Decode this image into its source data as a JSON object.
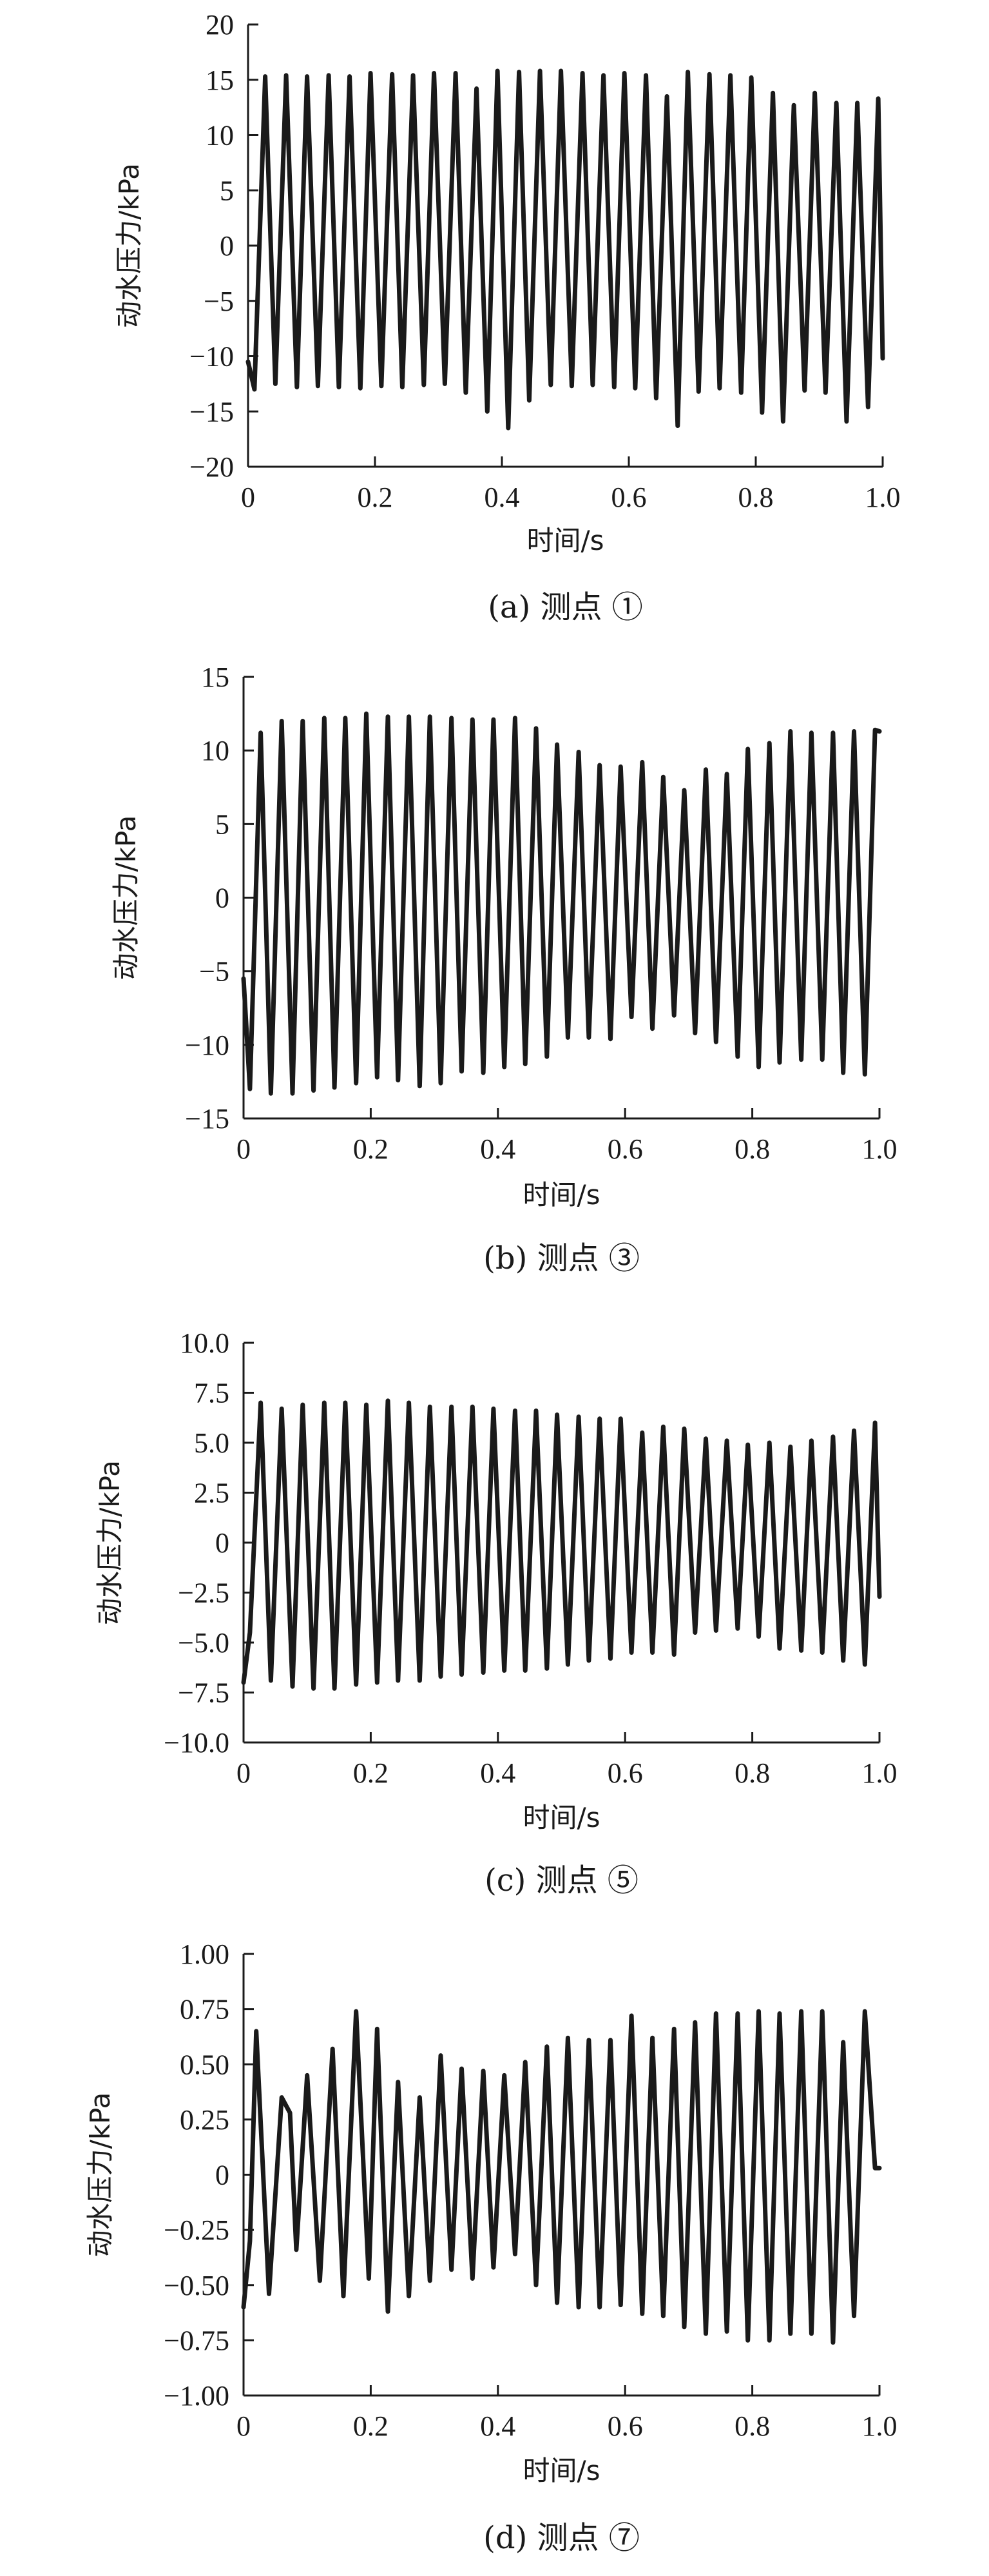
{
  "chart_data": [
    {
      "type": "line",
      "caption": "(a) 测点 ①",
      "xlabel": "时间/s",
      "ylabel": "动水压力/kPa",
      "xlim": [
        0,
        1.0
      ],
      "ylim": [
        -20,
        20
      ],
      "xticks": [
        "0",
        "0.2",
        "0.4",
        "0.6",
        "0.8",
        "1.0"
      ],
      "yticks": [
        "20",
        "15",
        "10",
        "5",
        "0",
        "−5",
        "−10",
        "−15",
        "−20"
      ],
      "x": [
        0,
        0.01,
        0.027,
        0.043,
        0.06,
        0.077,
        0.093,
        0.11,
        0.127,
        0.143,
        0.16,
        0.177,
        0.193,
        0.21,
        0.227,
        0.243,
        0.26,
        0.277,
        0.293,
        0.31,
        0.327,
        0.343,
        0.36,
        0.377,
        0.393,
        0.41,
        0.427,
        0.443,
        0.46,
        0.477,
        0.493,
        0.51,
        0.527,
        0.543,
        0.56,
        0.577,
        0.593,
        0.61,
        0.627,
        0.643,
        0.66,
        0.677,
        0.693,
        0.71,
        0.727,
        0.743,
        0.76,
        0.777,
        0.793,
        0.81,
        0.827,
        0.843,
        0.86,
        0.877,
        0.893,
        0.91,
        0.927,
        0.943,
        0.96,
        0.977,
        0.993,
        1.0
      ],
      "series": [
        {
          "values": [
            -10.5,
            -13,
            15.3,
            -12.5,
            15.4,
            -12.8,
            15.3,
            -12.7,
            15.4,
            -12.8,
            15.3,
            -12.9,
            15.6,
            -12.7,
            15.5,
            -12.8,
            15.4,
            -12.6,
            15.6,
            -12.5,
            15.6,
            -13.3,
            14.2,
            -15,
            15.8,
            -16.5,
            15.7,
            -14,
            15.8,
            -12.6,
            15.8,
            -12.7,
            15.6,
            -12.6,
            15.4,
            -12.8,
            15.6,
            -12.9,
            15.4,
            -13.8,
            13.5,
            -16.3,
            15.7,
            -13.2,
            15.5,
            -12.9,
            15.4,
            -13.3,
            15.2,
            -15.1,
            13.8,
            -15.9,
            12.7,
            -13.1,
            13.8,
            -13.3,
            12.9,
            -15.9,
            12.9,
            -14.6,
            13.3,
            -10.2
          ]
        }
      ]
    },
    {
      "type": "line",
      "caption": "(b) 测点 ③",
      "xlabel": "时间/s",
      "ylabel": "动水压力/kPa",
      "xlim": [
        0,
        1.0
      ],
      "ylim": [
        -15,
        15
      ],
      "xticks": [
        "0",
        "0.2",
        "0.4",
        "0.6",
        "0.8",
        "1.0"
      ],
      "yticks": [
        "15",
        "10",
        "5",
        "0",
        "−5",
        "−10",
        "−15"
      ],
      "x": [
        0,
        0.01,
        0.027,
        0.043,
        0.06,
        0.077,
        0.093,
        0.11,
        0.127,
        0.143,
        0.16,
        0.177,
        0.193,
        0.21,
        0.227,
        0.243,
        0.26,
        0.277,
        0.293,
        0.31,
        0.327,
        0.343,
        0.36,
        0.377,
        0.393,
        0.41,
        0.427,
        0.443,
        0.46,
        0.477,
        0.493,
        0.51,
        0.527,
        0.543,
        0.56,
        0.577,
        0.593,
        0.61,
        0.627,
        0.643,
        0.66,
        0.677,
        0.693,
        0.71,
        0.727,
        0.743,
        0.76,
        0.777,
        0.793,
        0.81,
        0.827,
        0.843,
        0.86,
        0.877,
        0.893,
        0.91,
        0.927,
        0.943,
        0.96,
        0.977,
        0.993,
        1.0
      ],
      "series": [
        {
          "values": [
            -5.5,
            -13,
            11.2,
            -13.3,
            12,
            -13.3,
            12,
            -13.1,
            12.2,
            -12.9,
            12.2,
            -12.6,
            12.5,
            -12.2,
            12.3,
            -12.4,
            12.3,
            -12.8,
            12.3,
            -12.6,
            12.2,
            -11.8,
            12.1,
            -11.9,
            12.1,
            -11.5,
            12.2,
            -11.3,
            11.5,
            -10.8,
            10.4,
            -9.5,
            9.9,
            -9.5,
            9,
            -9.6,
            8.9,
            -8.1,
            9.2,
            -8.9,
            8.2,
            -8,
            7.3,
            -9.2,
            8.7,
            -9.8,
            8.4,
            -10.8,
            10.1,
            -11.5,
            10.5,
            -11.2,
            11.3,
            -11,
            11.2,
            -11,
            11.2,
            -11.9,
            11.3,
            -12,
            11.4,
            11.3
          ]
        }
      ]
    },
    {
      "type": "line",
      "caption": "(c) 测点 ⑤",
      "xlabel": "时间/s",
      "ylabel": "动水压力/kPa",
      "xlim": [
        0,
        1.0
      ],
      "ylim": [
        -10,
        10
      ],
      "xticks": [
        "0",
        "0.2",
        "0.4",
        "0.6",
        "0.8",
        "1.0"
      ],
      "yticks": [
        "10.0",
        "7.5",
        "5.0",
        "2.5",
        "0",
        "−2.5",
        "−5.0",
        "−7.5",
        "−10.0"
      ],
      "x": [
        0,
        0.01,
        0.027,
        0.043,
        0.06,
        0.077,
        0.093,
        0.11,
        0.127,
        0.143,
        0.16,
        0.177,
        0.193,
        0.21,
        0.227,
        0.243,
        0.26,
        0.277,
        0.293,
        0.31,
        0.327,
        0.343,
        0.36,
        0.377,
        0.393,
        0.41,
        0.427,
        0.443,
        0.46,
        0.477,
        0.493,
        0.51,
        0.527,
        0.543,
        0.56,
        0.577,
        0.593,
        0.61,
        0.627,
        0.643,
        0.66,
        0.677,
        0.693,
        0.71,
        0.727,
        0.743,
        0.76,
        0.777,
        0.793,
        0.81,
        0.827,
        0.843,
        0.86,
        0.877,
        0.893,
        0.91,
        0.927,
        0.943,
        0.96,
        0.977,
        0.993,
        1.0
      ],
      "series": [
        {
          "values": [
            -7,
            -4.5,
            7,
            -6.9,
            6.7,
            -7.2,
            6.9,
            -7.3,
            7,
            -7.3,
            7,
            -7.1,
            6.9,
            -7,
            7.1,
            -6.9,
            7,
            -6.9,
            6.8,
            -6.7,
            6.8,
            -6.6,
            6.8,
            -6.5,
            6.7,
            -6.4,
            6.6,
            -6.4,
            6.6,
            -6.3,
            6.4,
            -6.1,
            6.3,
            -5.9,
            6.2,
            -5.8,
            6.2,
            -5.5,
            5.5,
            -5.5,
            5.8,
            -5.6,
            5.7,
            -4.5,
            5.2,
            -4.4,
            5.1,
            -4.3,
            4.9,
            -4.7,
            5,
            -5.3,
            4.8,
            -5.4,
            5.1,
            -5.5,
            5.3,
            -5.9,
            5.6,
            -6.1,
            6,
            -2.7
          ]
        }
      ]
    },
    {
      "type": "line",
      "caption": "(d) 测点 ⑦",
      "xlabel": "时间/s",
      "ylabel": "动水压力/kPa",
      "xlim": [
        0,
        1.0
      ],
      "ylim": [
        -1,
        1
      ],
      "xticks": [
        "0",
        "0.2",
        "0.4",
        "0.6",
        "0.8",
        "1.0"
      ],
      "yticks": [
        "1.00",
        "0.75",
        "0.50",
        "0.25",
        "0",
        "−0.25",
        "−0.50",
        "−0.75",
        "−1.00"
      ],
      "x": [
        0,
        0.01,
        0.02,
        0.04,
        0.06,
        0.073,
        0.083,
        0.1,
        0.12,
        0.14,
        0.157,
        0.177,
        0.197,
        0.21,
        0.227,
        0.243,
        0.26,
        0.277,
        0.293,
        0.31,
        0.327,
        0.343,
        0.36,
        0.377,
        0.393,
        0.41,
        0.427,
        0.443,
        0.46,
        0.477,
        0.493,
        0.51,
        0.527,
        0.543,
        0.56,
        0.577,
        0.593,
        0.61,
        0.627,
        0.643,
        0.66,
        0.677,
        0.693,
        0.71,
        0.727,
        0.743,
        0.76,
        0.777,
        0.793,
        0.81,
        0.827,
        0.843,
        0.86,
        0.877,
        0.893,
        0.91,
        0.927,
        0.943,
        0.96,
        0.977,
        0.993,
        1.0
      ],
      "series": [
        {
          "values": [
            -0.6,
            -0.3,
            0.65,
            -0.54,
            0.35,
            0.28,
            -0.34,
            0.45,
            -0.48,
            0.57,
            -0.55,
            0.74,
            -0.47,
            0.66,
            -0.62,
            0.42,
            -0.55,
            0.35,
            -0.48,
            0.54,
            -0.43,
            0.48,
            -0.47,
            0.47,
            -0.42,
            0.45,
            -0.36,
            0.51,
            -0.5,
            0.58,
            -0.58,
            0.62,
            -0.6,
            0.61,
            -0.6,
            0.61,
            -0.59,
            0.72,
            -0.63,
            0.62,
            -0.64,
            0.66,
            -0.69,
            0.69,
            -0.72,
            0.73,
            -0.71,
            0.73,
            -0.75,
            0.74,
            -0.75,
            0.73,
            -0.72,
            0.74,
            -0.72,
            0.74,
            -0.76,
            0.6,
            -0.64,
            0.74,
            0.03,
            0.03
          ]
        }
      ]
    }
  ]
}
